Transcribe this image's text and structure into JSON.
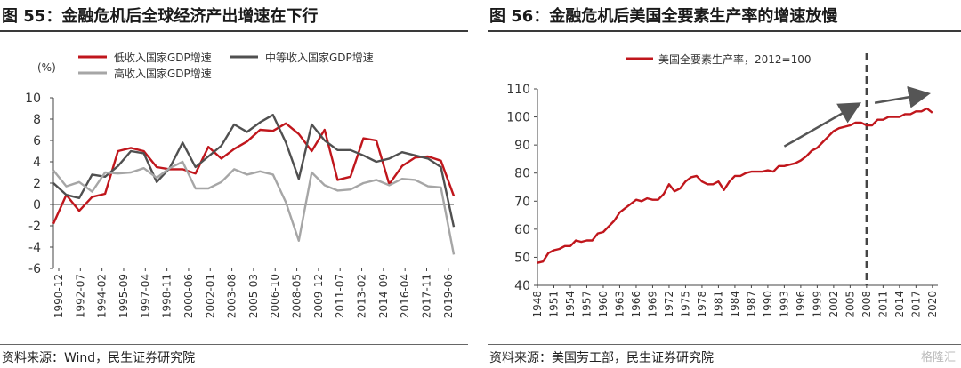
{
  "left": {
    "title": "图 55：金融危机后全球经济产出增速在下行",
    "source": "资料来源：Wind，民生证券研究院",
    "chart_data": {
      "type": "line",
      "ylabel": "(%)",
      "ylim": [
        -6,
        10
      ],
      "yticks": [
        -6,
        -4,
        -2,
        0,
        2,
        4,
        6,
        8,
        10
      ],
      "x_tick_labels": [
        "1990-12",
        "1992-07",
        "1994-02",
        "1995-09",
        "1997-04",
        "1998-11",
        "2000-06",
        "2002-01",
        "2003-08",
        "2005-03",
        "2006-10",
        "2008-05",
        "2009-12",
        "2011-07",
        "2013-02",
        "2014-09",
        "2016-04",
        "2017-11",
        "2019-06"
      ],
      "x_start_year": 1990,
      "series": [
        {
          "name": "低收入国家GDP增速",
          "color": "#c0161c",
          "values": [
            -1.8,
            0.9,
            -0.6,
            0.7,
            1.0,
            5.0,
            5.3,
            5.0,
            3.5,
            3.3,
            3.3,
            2.9,
            5.4,
            4.3,
            5.2,
            5.9,
            7.0,
            6.9,
            7.6,
            6.6,
            5.0,
            7.0,
            2.3,
            2.6,
            6.2,
            6.0,
            1.9,
            3.6,
            4.4,
            4.5,
            4.1,
            0.8
          ]
        },
        {
          "name": "中等收入国家GDP增速",
          "color": "#505050",
          "values": [
            2.0,
            0.9,
            0.6,
            2.8,
            2.6,
            3.6,
            5.0,
            4.8,
            2.1,
            3.4,
            5.8,
            3.5,
            4.5,
            5.5,
            7.5,
            6.8,
            7.7,
            8.4,
            5.8,
            2.4,
            7.5,
            6.0,
            5.1,
            5.1,
            4.6,
            4.0,
            4.3,
            4.9,
            4.6,
            4.3,
            3.5,
            -2.1
          ]
        },
        {
          "name": "高收入国家GDP增速",
          "color": "#a6a6a6",
          "values": [
            3.2,
            1.7,
            2.1,
            1.2,
            3.0,
            2.9,
            3.0,
            3.4,
            2.5,
            3.4,
            4.0,
            1.5,
            1.5,
            2.1,
            3.3,
            2.8,
            3.1,
            2.8,
            0.2,
            -3.4,
            3.0,
            1.8,
            1.3,
            1.4,
            2.0,
            2.3,
            1.8,
            2.4,
            2.3,
            1.7,
            1.6,
            -4.7
          ]
        }
      ]
    }
  },
  "right": {
    "title": "图 56：金融危机后美国全要素生产率的增速放慢",
    "source": "资料来源：美国劳工部，民生证券研究院",
    "watermark": "格隆汇",
    "chart_data": {
      "type": "line",
      "ylim": [
        40,
        110
      ],
      "yticks": [
        40,
        50,
        60,
        70,
        80,
        90,
        100,
        110
      ],
      "x_tick_labels": [
        "1948",
        "1951",
        "1954",
        "1957",
        "1960",
        "1963",
        "1966",
        "1969",
        "1972",
        "1975",
        "1978",
        "1981",
        "1984",
        "1987",
        "1990",
        "1993",
        "1996",
        "1999",
        "2002",
        "2005",
        "2008",
        "2011",
        "2014",
        "2017",
        "2020"
      ],
      "vline_year": 2008,
      "series": [
        {
          "name": "美国全要素生产率，2012=100",
          "color": "#c0161c",
          "years": [
            1948,
            1949,
            1950,
            1951,
            1952,
            1953,
            1954,
            1955,
            1956,
            1957,
            1958,
            1959,
            1960,
            1961,
            1962,
            1963,
            1964,
            1965,
            1966,
            1967,
            1968,
            1969,
            1970,
            1971,
            1972,
            1973,
            1974,
            1975,
            1976,
            1977,
            1978,
            1979,
            1980,
            1981,
            1982,
            1983,
            1984,
            1985,
            1986,
            1987,
            1988,
            1989,
            1990,
            1991,
            1992,
            1993,
            1994,
            1995,
            1996,
            1997,
            1998,
            1999,
            2000,
            2001,
            2002,
            2003,
            2004,
            2005,
            2006,
            2007,
            2008,
            2009,
            2010,
            2011,
            2012,
            2013,
            2014,
            2015,
            2016,
            2017,
            2018,
            2019,
            2020
          ],
          "values": [
            48,
            48.5,
            51.5,
            52.5,
            53,
            54,
            54,
            56,
            55.5,
            56,
            56,
            58.5,
            59,
            61,
            63,
            66,
            67.5,
            69,
            70.5,
            70,
            71,
            70.5,
            70.5,
            72.5,
            76,
            73.5,
            74.5,
            77,
            78.5,
            79,
            77,
            76,
            76,
            77,
            74,
            77,
            79,
            79,
            80,
            80.5,
            80.5,
            80.5,
            81,
            80.5,
            82.5,
            82.5,
            83,
            83.5,
            84.5,
            86,
            88,
            89,
            91,
            93,
            95,
            96,
            96.5,
            97,
            98,
            98,
            97,
            97,
            99,
            99,
            100,
            100,
            100,
            101,
            101,
            102,
            102,
            103,
            101.5
          ]
        }
      ],
      "arrows": 2
    }
  }
}
